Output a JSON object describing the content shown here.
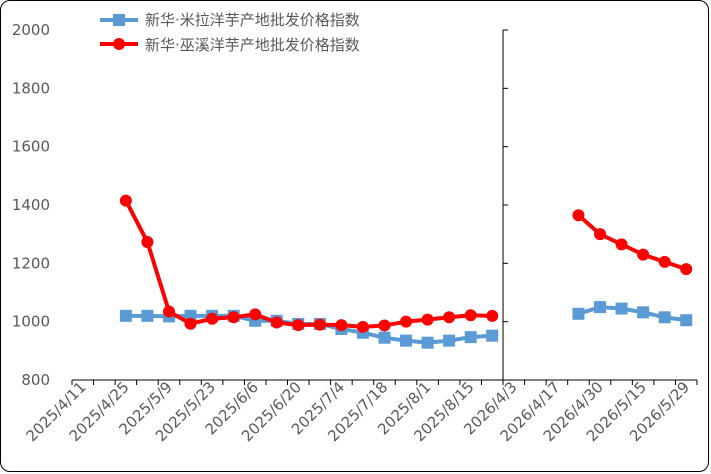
{
  "chart_data": {
    "type": "line",
    "x": [
      "2025/4/11",
      "2025/4/18",
      "2025/4/25",
      "2025/5/2",
      "2025/5/9",
      "2025/5/16",
      "2025/5/23",
      "2025/5/30",
      "2025/6/6",
      "2025/6/13",
      "2025/6/20",
      "2025/6/27",
      "2025/7/4",
      "2025/7/11",
      "2025/7/18",
      "2025/7/25",
      "2025/8/1",
      "2025/8/8",
      "2025/8/15",
      "2025/8/22",
      "2026/4/3",
      "2026/4/10",
      "2026/4/17",
      "2026/4/24",
      "2026/4/30",
      "2026/5/8",
      "2026/5/15",
      "2026/5/22",
      "2026/5/29"
    ],
    "xtick_labels": [
      "2025/4/11",
      "2025/4/25",
      "2025/5/9",
      "2025/5/23",
      "2025/6/6",
      "2025/6/20",
      "2025/7/4",
      "2025/7/18",
      "2025/8/1",
      "2025/8/15",
      "2026/4/3",
      "2026/4/17",
      "2026/4/30",
      "2026/5/15",
      "2026/5/29"
    ],
    "yticks": [
      800,
      1000,
      1200,
      1400,
      1600,
      1800,
      2000
    ],
    "ylim": [
      800,
      2000
    ],
    "series": [
      {
        "name": "新华·米拉洋芋产地批发价格指数",
        "color": "#5b9bd5",
        "marker": "square",
        "values": [
          null,
          null,
          1020,
          1020,
          1018,
          1020,
          1020,
          1020,
          1003,
          1003,
          992,
          992,
          975,
          962,
          945,
          935,
          928,
          935,
          947,
          952,
          null,
          null,
          null,
          1027,
          1050,
          1045,
          1032,
          1015,
          1005
        ]
      },
      {
        "name": "新华·巫溪洋芋产地批发价格指数",
        "color": "#ff0000",
        "marker": "circle",
        "values": [
          null,
          null,
          1415,
          1273,
          1035,
          993,
          1010,
          1015,
          1025,
          997,
          988,
          990,
          988,
          982,
          987,
          1000,
          1007,
          1015,
          1022,
          1020,
          null,
          null,
          null,
          1365,
          1300,
          1265,
          1230,
          1205,
          1180
        ]
      }
    ],
    "grid": false,
    "legend": "top-left"
  }
}
